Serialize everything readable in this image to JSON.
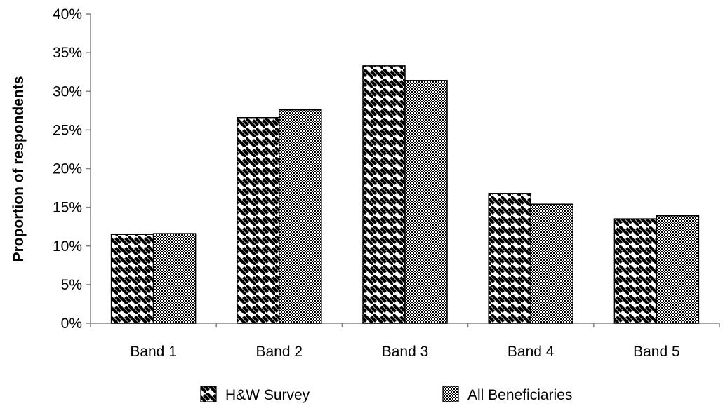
{
  "chart_data": {
    "type": "bar",
    "title": "",
    "xlabel": "",
    "ylabel": "Proportion of respondents",
    "categories": [
      "Band 1",
      "Band 2",
      "Band 3",
      "Band 4",
      "Band 5"
    ],
    "series": [
      {
        "name": "H&W Survey",
        "values": [
          11.5,
          26.6,
          33.3,
          16.8,
          13.5
        ],
        "pattern": "diagonal-stripes",
        "color": "#000000"
      },
      {
        "name": "All Beneficiaries",
        "values": [
          11.6,
          27.6,
          31.4,
          15.4,
          13.9
        ],
        "pattern": "checker-dots",
        "color": "#000000"
      }
    ],
    "ylim": [
      0,
      40
    ],
    "yticks": [
      "0%",
      "5%",
      "10%",
      "15%",
      "20%",
      "25%",
      "30%",
      "35%",
      "40%"
    ],
    "grid": false,
    "legend": "bottom"
  }
}
